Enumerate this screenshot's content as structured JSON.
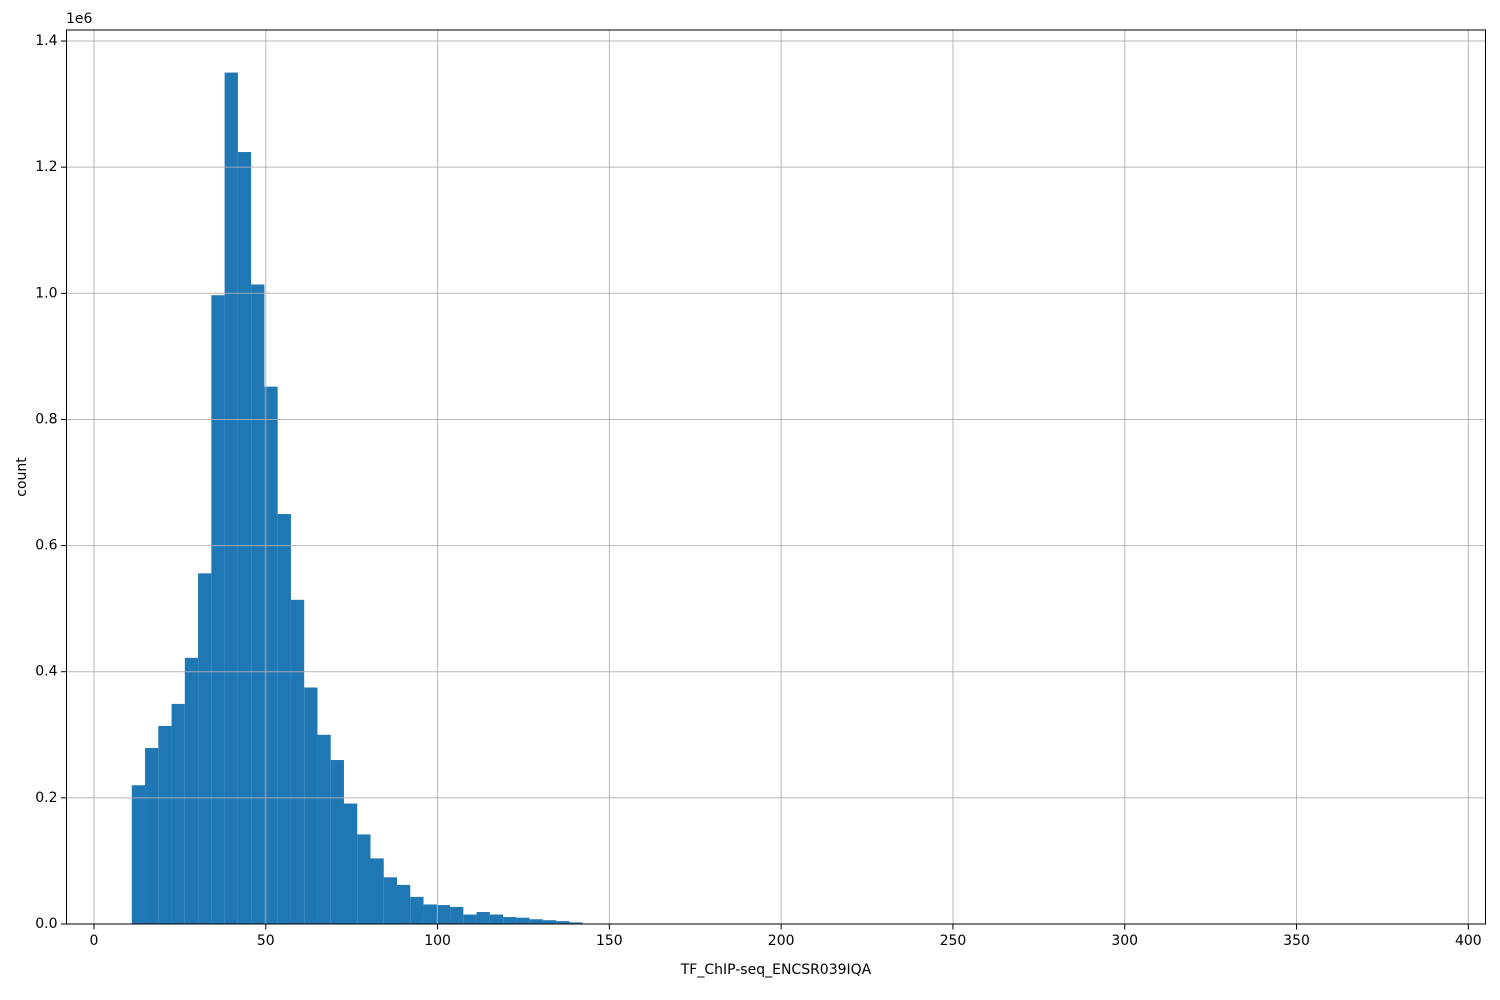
{
  "figure": {
    "background_color": "#ffffff",
    "text_color": "#000000"
  },
  "chart_data": {
    "type": "bar",
    "subtype": "histogram",
    "title": "",
    "xlabel": "TF_ChIP-seq_ENCSR039IQA",
    "ylabel": "count",
    "y_offset_label": "1e6",
    "bins": {
      "start": 11.0,
      "width": 3.86,
      "count": 34
    },
    "counts": [
      220000,
      279000,
      314000,
      349000,
      422000,
      556000,
      997000,
      1350000,
      1224000,
      1014000,
      852000,
      650000,
      514000,
      375000,
      300000,
      260000,
      191000,
      142000,
      104000,
      74000,
      62000,
      43000,
      31000,
      30000,
      27000,
      15000,
      19000,
      15000,
      11000,
      10000,
      7500,
      6000,
      4500,
      2500
    ],
    "xlim": [
      -8,
      405
    ],
    "ylim": [
      0,
      1417500
    ],
    "xticks": [
      0,
      50,
      100,
      150,
      200,
      250,
      300,
      350,
      400
    ],
    "xtick_labels": [
      "0",
      "50",
      "100",
      "150",
      "200",
      "250",
      "300",
      "350",
      "400"
    ],
    "yticks": [
      0,
      200000,
      400000,
      600000,
      800000,
      1000000,
      1200000,
      1400000
    ],
    "ytick_labels": [
      "0.0",
      "0.2",
      "0.4",
      "0.6",
      "0.8",
      "1.0",
      "1.2",
      "1.4"
    ],
    "grid": true,
    "grid_position": "above-bars",
    "legend": null,
    "bar_color": "#1f77b4",
    "grid_color": "#b0b0b0",
    "spine_color": "#000000"
  }
}
